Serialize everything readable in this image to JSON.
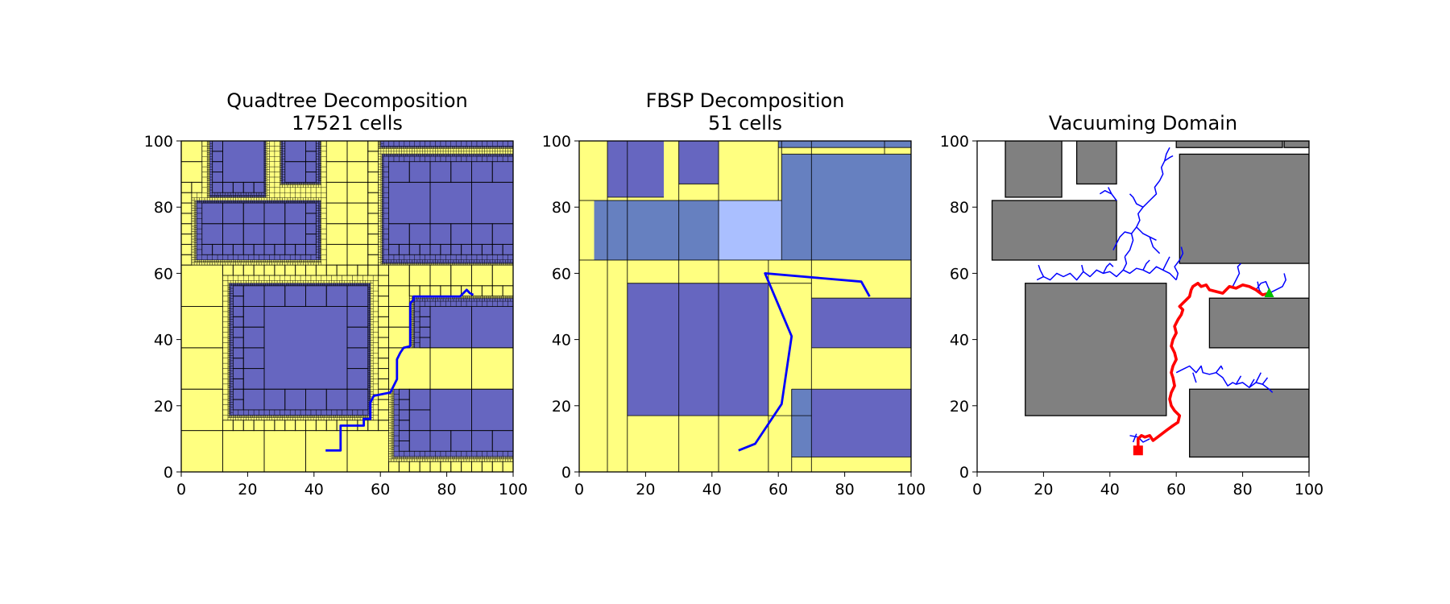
{
  "chart_data": [
    {
      "type": "scatter",
      "title": "Quadtree Decomposition",
      "subtitle": "17521 cells",
      "xlabel": "",
      "ylabel": "",
      "xlim": [
        0,
        100
      ],
      "ylim": [
        0,
        100
      ],
      "xticks": [
        0,
        20,
        40,
        60,
        80,
        100
      ],
      "yticks": [
        0,
        20,
        40,
        60,
        80,
        100
      ],
      "grid": false,
      "colors": {
        "free": "#ffff80",
        "occupied": "#6666c0",
        "path": "#0000ff",
        "edge": "#000000"
      },
      "obstacles": [
        {
          "x": 8.5,
          "y": 83,
          "w": 17,
          "h": 17
        },
        {
          "x": 30,
          "y": 87,
          "w": 12,
          "h": 13
        },
        {
          "x": 4.5,
          "y": 64,
          "w": 37.5,
          "h": 18
        },
        {
          "x": 60,
          "y": 98,
          "w": 40,
          "h": 2
        },
        {
          "x": 60.5,
          "y": 63,
          "w": 39.5,
          "h": 33
        },
        {
          "x": 14.5,
          "y": 17,
          "w": 42.5,
          "h": 40
        },
        {
          "x": 70,
          "y": 37.5,
          "w": 30,
          "h": 15
        },
        {
          "x": 64,
          "y": 4.5,
          "w": 36,
          "h": 20.5
        }
      ],
      "path": {
        "x": [
          43.5,
          48,
          48,
          55,
          55,
          57,
          57,
          58,
          63,
          65,
          65,
          66,
          67,
          69,
          69,
          70,
          70,
          75,
          78,
          84,
          86,
          87,
          88
        ],
        "y": [
          6.5,
          6.5,
          14,
          14,
          16,
          16,
          21,
          23,
          24,
          28,
          34,
          36,
          37.5,
          38,
          51,
          52,
          53,
          53,
          53,
          53,
          55,
          54,
          53.5
        ]
      }
    },
    {
      "type": "scatter",
      "title": "FBSP Decomposition",
      "subtitle": "51 cells",
      "xlabel": "",
      "ylabel": "",
      "xlim": [
        0,
        100
      ],
      "ylim": [
        0,
        100
      ],
      "xticks": [
        0,
        20,
        40,
        60,
        80,
        100
      ],
      "yticks": [
        0,
        20,
        40,
        60,
        80,
        100
      ],
      "grid": false,
      "colors": {
        "free": "#ffff80",
        "occupied": "#6666c0",
        "overlap": "#6680c0",
        "light": "#aabfff",
        "path": "#0000ff",
        "edge": "#000000"
      },
      "cells": [
        {
          "x": 0,
          "y": 0,
          "w": 100,
          "h": 100,
          "c": "#ffff80"
        },
        {
          "x": 8.5,
          "y": 83,
          "w": 17,
          "h": 17,
          "c": "#6666c0"
        },
        {
          "x": 30,
          "y": 87,
          "w": 12,
          "h": 13,
          "c": "#6666c0"
        },
        {
          "x": 60,
          "y": 98,
          "w": 40,
          "h": 2,
          "c": "#6680c0"
        },
        {
          "x": 4.5,
          "y": 64,
          "w": 37.5,
          "h": 18,
          "c": "#6680c0"
        },
        {
          "x": 42,
          "y": 64,
          "w": 19,
          "h": 18,
          "c": "#aabfff"
        },
        {
          "x": 61,
          "y": 64,
          "w": 39,
          "h": 32,
          "c": "#6680c0"
        },
        {
          "x": 61,
          "y": 82,
          "w": 9,
          "h": 14,
          "c": "#6680c0"
        },
        {
          "x": 14.5,
          "y": 17,
          "w": 42.5,
          "h": 40,
          "c": "#6666c0"
        },
        {
          "x": 70,
          "y": 37.5,
          "w": 30,
          "h": 15,
          "c": "#6666c0"
        },
        {
          "x": 64,
          "y": 4.5,
          "w": 36,
          "h": 20.5,
          "c": "#6666c0"
        },
        {
          "x": 64,
          "y": 4.5,
          "w": 6,
          "h": 20.5,
          "c": "#6680c0"
        }
      ],
      "splits": [
        {
          "x1": 8.5,
          "y1": 0,
          "x2": 8.5,
          "y2": 100
        },
        {
          "x1": 14.5,
          "y1": 0,
          "x2": 14.5,
          "y2": 100
        },
        {
          "x1": 30,
          "y1": 0,
          "x2": 30,
          "y2": 100
        },
        {
          "x1": 42,
          "y1": 0,
          "x2": 42,
          "y2": 100
        },
        {
          "x1": 57,
          "y1": 0,
          "x2": 57,
          "y2": 64
        },
        {
          "x1": 60,
          "y1": 82,
          "x2": 60,
          "y2": 100
        },
        {
          "x1": 61,
          "y1": 64,
          "x2": 61,
          "y2": 100
        },
        {
          "x1": 64,
          "y1": 0,
          "x2": 64,
          "y2": 25
        },
        {
          "x1": 70,
          "y1": 0,
          "x2": 70,
          "y2": 100
        },
        {
          "x1": 92,
          "y1": 96,
          "x2": 92,
          "y2": 100
        },
        {
          "x1": 0,
          "y1": 64,
          "x2": 100,
          "y2": 64
        },
        {
          "x1": 0,
          "y1": 82,
          "x2": 61,
          "y2": 82
        },
        {
          "x1": 8.5,
          "y1": 83,
          "x2": 25.5,
          "y2": 83
        },
        {
          "x1": 30,
          "y1": 87,
          "x2": 42,
          "y2": 87
        },
        {
          "x1": 14.5,
          "y1": 57,
          "x2": 70,
          "y2": 57
        },
        {
          "x1": 14.5,
          "y1": 17,
          "x2": 70,
          "y2": 17
        },
        {
          "x1": 70,
          "y1": 52.5,
          "x2": 100,
          "y2": 52.5
        },
        {
          "x1": 70,
          "y1": 37.5,
          "x2": 100,
          "y2": 37.5
        },
        {
          "x1": 64,
          "y1": 25,
          "x2": 100,
          "y2": 25
        },
        {
          "x1": 64,
          "y1": 4.5,
          "x2": 100,
          "y2": 4.5
        },
        {
          "x1": 61,
          "y1": 96,
          "x2": 100,
          "y2": 96
        },
        {
          "x1": 60,
          "y1": 98,
          "x2": 100,
          "y2": 98
        }
      ],
      "path": {
        "x": [
          48,
          53,
          61,
          64,
          56,
          85,
          87.5
        ],
        "y": [
          6.5,
          8.5,
          20.5,
          41,
          60,
          57.5,
          53
        ]
      }
    },
    {
      "type": "scatter",
      "title": "Vacuuming Domain",
      "xlabel": "",
      "ylabel": "",
      "xlim": [
        0,
        100
      ],
      "ylim": [
        0,
        100
      ],
      "xticks": [
        0,
        20,
        40,
        60,
        80,
        100
      ],
      "yticks": [
        0,
        20,
        40,
        60,
        80,
        100
      ],
      "grid": false,
      "colors": {
        "obstacle": "#808080",
        "tree": "#0000ff",
        "path": "#ff0000",
        "start": "#ff0000",
        "goal": "#00c000"
      },
      "obstacles": [
        {
          "x": 8.5,
          "y": 83,
          "w": 17,
          "h": 17
        },
        {
          "x": 30,
          "y": 87,
          "w": 12,
          "h": 13
        },
        {
          "x": 4.5,
          "y": 64,
          "w": 37.5,
          "h": 18
        },
        {
          "x": 60,
          "y": 98,
          "w": 32,
          "h": 2
        },
        {
          "x": 92.5,
          "y": 98,
          "w": 7.5,
          "h": 2
        },
        {
          "x": 61,
          "y": 63,
          "w": 39,
          "h": 33
        },
        {
          "x": 14.5,
          "y": 17,
          "w": 42.5,
          "h": 40
        },
        {
          "x": 70,
          "y": 37.5,
          "w": 30,
          "h": 15
        },
        {
          "x": 64,
          "y": 4.5,
          "w": 36,
          "h": 20.5
        }
      ],
      "start": {
        "x": 48.5,
        "y": 6.5
      },
      "goal": {
        "x": 88,
        "y": 54
      },
      "path": {
        "x": [
          48.5,
          48.5,
          49.5,
          50.5,
          52,
          53,
          55,
          57,
          59,
          60.5,
          61,
          59.5,
          58.5,
          58,
          58.5,
          59.5,
          59,
          58.5,
          59,
          60,
          59.5,
          58.5,
          59,
          60,
          59.5,
          60.5,
          61.5,
          62,
          61,
          62,
          63,
          64,
          64.5,
          65,
          66.5,
          67.5,
          69,
          70,
          72,
          74,
          76,
          78,
          80,
          82,
          84,
          86,
          88
        ],
        "y": [
          6.5,
          10,
          11,
          10.5,
          11,
          9.5,
          11,
          12.5,
          14,
          15,
          17,
          18.5,
          20,
          22,
          24,
          26,
          28.5,
          30,
          32,
          34,
          36,
          38,
          40,
          42,
          44,
          46,
          47.5,
          49,
          50,
          51,
          52,
          53,
          55,
          56,
          57,
          56,
          56.5,
          55,
          54.5,
          54,
          56,
          55.5,
          56.5,
          56,
          55,
          53.5,
          54
        ]
      },
      "tree": [
        {
          "x": [
            46,
            48.5,
            50,
            52
          ],
          "y": [
            11,
            10.5,
            9,
            10
          ]
        },
        {
          "x": [
            47,
            48
          ],
          "y": [
            9,
            11.5
          ]
        },
        {
          "x": [
            60,
            62,
            64,
            66,
            67.5,
            68,
            70,
            72,
            74,
            75.5,
            77,
            78,
            80,
            82,
            84,
            86,
            88,
            89
          ],
          "y": [
            30,
            31,
            32,
            30,
            32,
            30,
            29.5,
            30,
            28.5,
            26,
            27,
            26.5,
            27,
            25.5,
            27,
            26.5,
            25,
            24
          ]
        },
        {
          "x": [
            65,
            66
          ],
          "y": [
            30,
            27
          ]
        },
        {
          "x": [
            72,
            73.5,
            74
          ],
          "y": [
            30,
            32,
            31
          ]
        },
        {
          "x": [
            78,
            79.5
          ],
          "y": [
            26.5,
            29
          ]
        },
        {
          "x": [
            82,
            83.5
          ],
          "y": [
            25.5,
            28
          ]
        },
        {
          "x": [
            84,
            85.5
          ],
          "y": [
            27,
            30
          ]
        },
        {
          "x": [
            86,
            87.5
          ],
          "y": [
            26.5,
            28.5
          ]
        },
        {
          "x": [
            18,
            20,
            22,
            24,
            26,
            28,
            30,
            32,
            34,
            36,
            38,
            40,
            42,
            44,
            46,
            48,
            50,
            52,
            54,
            56,
            58,
            60
          ],
          "y": [
            58,
            59,
            58,
            60,
            59,
            60,
            58,
            60.5,
            59,
            61,
            60,
            60.5,
            59,
            61,
            60,
            61.5,
            61,
            60,
            62,
            61,
            60,
            58
          ]
        },
        {
          "x": [
            20,
            19,
            18.5
          ],
          "y": [
            59,
            61,
            62.5
          ]
        },
        {
          "x": [
            32,
            31.5
          ],
          "y": [
            60.5,
            62.5
          ]
        },
        {
          "x": [
            38,
            39,
            40,
            41
          ],
          "y": [
            60,
            62,
            63,
            62
          ]
        },
        {
          "x": [
            44,
            45,
            44.5
          ],
          "y": [
            61,
            63,
            65
          ]
        },
        {
          "x": [
            50,
            51,
            52
          ],
          "y": [
            61,
            63,
            64
          ]
        },
        {
          "x": [
            56,
            57,
            58
          ],
          "y": [
            61,
            63,
            65
          ]
        },
        {
          "x": [
            44.5,
            46,
            47,
            46.5,
            48,
            49,
            48.5,
            50,
            52,
            54,
            53.5,
            55,
            56,
            55.5,
            56.5,
            57,
            58
          ],
          "y": [
            65,
            67,
            70,
            72,
            74,
            76,
            78,
            80,
            82,
            84,
            86,
            88,
            90,
            92,
            94,
            96,
            98
          ]
        },
        {
          "x": [
            56.5,
            58,
            59
          ],
          "y": [
            94,
            95,
            95.5
          ]
        },
        {
          "x": [
            50,
            48,
            47,
            46
          ],
          "y": [
            80,
            81,
            83,
            84
          ]
        },
        {
          "x": [
            46.5,
            44.5,
            43,
            42,
            41
          ],
          "y": [
            72,
            72.5,
            71,
            69,
            67
          ]
        },
        {
          "x": [
            42,
            40.5,
            38.5,
            37
          ],
          "y": [
            82,
            84,
            85,
            84
          ]
        },
        {
          "x": [
            40.5,
            39.5
          ],
          "y": [
            84,
            86
          ]
        },
        {
          "x": [
            48,
            50,
            52,
            54
          ],
          "y": [
            74,
            72,
            71,
            70
          ]
        },
        {
          "x": [
            52,
            53,
            55
          ],
          "y": [
            71,
            68,
            66
          ]
        },
        {
          "x": [
            60,
            60.5,
            59.5,
            61,
            62,
            61.5
          ],
          "y": [
            58,
            60,
            62,
            64,
            66,
            68
          ]
        },
        {
          "x": [
            77,
            78,
            79,
            78.5,
            79.5
          ],
          "y": [
            56,
            58,
            60,
            62,
            63
          ]
        },
        {
          "x": [
            84,
            85.5,
            87,
            88
          ],
          "y": [
            55,
            57,
            57.5,
            55
          ]
        },
        {
          "x": [
            88,
            90,
            92,
            93,
            92.5
          ],
          "y": [
            54,
            55,
            56,
            58,
            60
          ]
        },
        {
          "x": [
            86,
            85,
            84.5
          ],
          "y": [
            53.5,
            55,
            57.5
          ]
        }
      ]
    }
  ]
}
